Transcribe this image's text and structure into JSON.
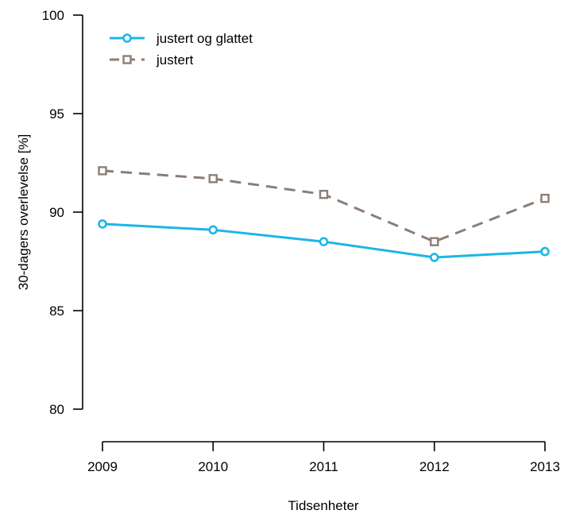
{
  "chart_data": {
    "type": "line",
    "title": "",
    "xlabel": "Tidsenheter",
    "ylabel": "30-dagers overlevelse [%]",
    "categories": [
      "2009",
      "2010",
      "2011",
      "2012",
      "2013"
    ],
    "ylim": [
      80,
      100
    ],
    "yticks": [
      "80",
      "85",
      "90",
      "95",
      "100"
    ],
    "grid": false,
    "legend_position": "top-left",
    "series": [
      {
        "name": "justert og glattet",
        "values": [
          89.4,
          89.1,
          88.5,
          87.7,
          88.0
        ],
        "color": "#1bb6e8",
        "marker": "circle",
        "line_style": "solid"
      },
      {
        "name": "justert",
        "values": [
          92.1,
          91.7,
          90.9,
          88.5,
          90.7
        ],
        "color": "#8c7e75",
        "marker": "square",
        "line_style": "dashed"
      }
    ]
  }
}
